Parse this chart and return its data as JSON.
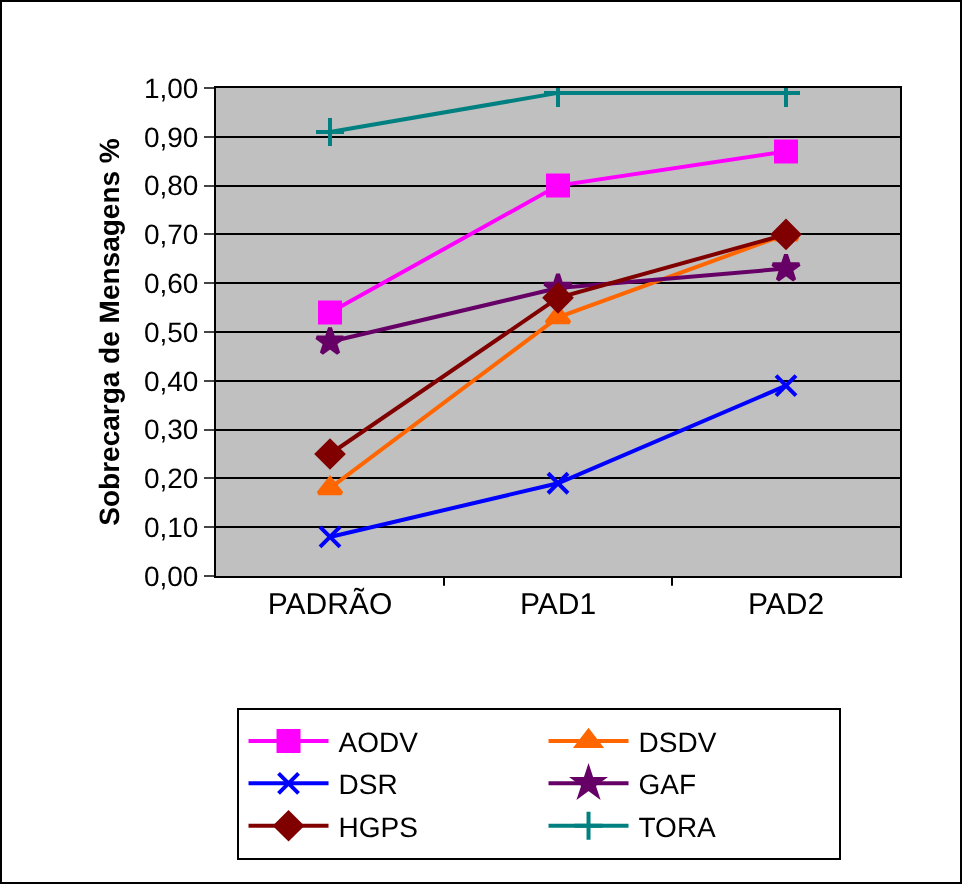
{
  "chart_data": {
    "type": "line",
    "ylabel": "Sobrecarga de Mensagens %",
    "categories": [
      "PADRÃO",
      "PAD1",
      "PAD2"
    ],
    "series": [
      {
        "name": "AODV",
        "color": "#ff00ff",
        "marker": "square",
        "values": [
          0.54,
          0.8,
          0.87
        ]
      },
      {
        "name": "DSDV",
        "color": "#ff6600",
        "marker": "triangle",
        "values": [
          0.18,
          0.53,
          0.7
        ]
      },
      {
        "name": "DSR",
        "color": "#0000ff",
        "marker": "x",
        "values": [
          0.08,
          0.19,
          0.39
        ]
      },
      {
        "name": "GAF",
        "color": "#660066",
        "marker": "star",
        "values": [
          0.48,
          0.59,
          0.63
        ]
      },
      {
        "name": "HGPS",
        "color": "#800000",
        "marker": "diamond",
        "values": [
          0.25,
          0.57,
          0.7
        ]
      },
      {
        "name": "TORA",
        "color": "#008080",
        "marker": "cross",
        "values": [
          0.91,
          0.99,
          0.99
        ]
      }
    ],
    "ylim": [
      0,
      1
    ],
    "yticks": [
      {
        "value": 0,
        "label": "0,00"
      },
      {
        "value": 0.1,
        "label": "0,10"
      },
      {
        "value": 0.2,
        "label": "0,20"
      },
      {
        "value": 0.3,
        "label": "0,30"
      },
      {
        "value": 0.4,
        "label": "0,40"
      },
      {
        "value": 0.5,
        "label": "0,50"
      },
      {
        "value": 0.6,
        "label": "0,60"
      },
      {
        "value": 0.7,
        "label": "0,70"
      },
      {
        "value": 0.8,
        "label": "0,80"
      },
      {
        "value": 0.9,
        "label": "0,90"
      },
      {
        "value": 1,
        "label": "1,00"
      }
    ],
    "grid": "y",
    "legend": "bottom"
  }
}
